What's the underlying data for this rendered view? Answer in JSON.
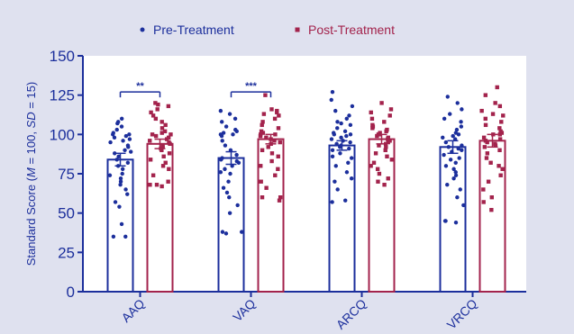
{
  "chart_data": {
    "type": "bar",
    "ylabel_parts": [
      "Standard Score (",
      "M",
      " = 100, ",
      "SD",
      " = 15)"
    ],
    "ylim": [
      0,
      150
    ],
    "yticks": [
      0,
      25,
      50,
      75,
      100,
      125,
      150
    ],
    "categories": [
      "AAQ",
      "VAQ",
      "ARCQ",
      "VRCQ"
    ],
    "series": [
      {
        "name": "Pre-Treatment",
        "color": "#1c2f9c",
        "marker": "circle",
        "values": [
          84,
          85,
          93,
          92
        ],
        "errors": [
          4,
          4,
          3,
          4
        ],
        "points": [
          [
            35,
            35,
            43,
            54,
            57,
            62,
            65,
            68,
            70,
            72,
            74,
            75,
            78,
            80,
            82,
            84,
            86,
            88,
            89,
            90,
            92,
            93,
            95,
            96,
            97,
            98,
            99,
            100,
            100,
            101,
            103,
            105,
            107,
            108,
            110
          ],
          [
            37,
            38,
            38,
            50,
            55,
            60,
            63,
            66,
            70,
            75,
            76,
            78,
            80,
            82,
            83,
            84,
            85,
            87,
            90,
            93,
            96,
            99,
            100,
            100,
            101,
            102,
            103,
            105,
            108,
            110,
            113,
            115
          ],
          [
            57,
            58,
            65,
            70,
            72,
            76,
            80,
            82,
            85,
            86,
            88,
            90,
            91,
            92,
            93,
            94,
            95,
            96,
            97,
            98,
            99,
            100,
            100,
            101,
            102,
            104,
            106,
            107,
            108,
            110,
            112,
            115,
            118,
            122,
            127
          ],
          [
            44,
            45,
            45,
            55,
            60,
            65,
            68,
            72,
            74,
            76,
            78,
            80,
            82,
            84,
            85,
            87,
            89,
            90,
            91,
            92,
            93,
            95,
            97,
            98,
            99,
            100,
            101,
            103,
            105,
            108,
            110,
            113,
            116,
            120,
            124
          ]
        ]
      },
      {
        "name": "Post-Treatment",
        "color": "#a3234c",
        "marker": "square",
        "values": [
          94,
          97,
          97,
          96
        ],
        "errors": [
          3,
          3,
          3,
          4
        ],
        "points": [
          [
            67,
            68,
            68,
            70,
            74,
            78,
            80,
            82,
            84,
            86,
            88,
            90,
            91,
            92,
            93,
            94,
            95,
            96,
            97,
            98,
            99,
            100,
            100,
            101,
            102,
            104,
            106,
            108,
            110,
            112,
            114,
            116,
            118,
            119,
            120
          ],
          [
            58,
            60,
            60,
            66,
            70,
            74,
            78,
            80,
            83,
            86,
            88,
            90,
            92,
            94,
            95,
            96,
            97,
            98,
            99,
            100,
            100,
            101,
            102,
            104,
            106,
            108,
            110,
            112,
            113,
            114,
            115,
            116,
            125
          ],
          [
            68,
            70,
            72,
            75,
            78,
            80,
            82,
            84,
            86,
            88,
            90,
            92,
            93,
            94,
            95,
            96,
            97,
            98,
            99,
            100,
            100,
            101,
            102,
            103,
            104,
            105,
            106,
            108,
            110,
            112,
            114,
            116,
            120
          ],
          [
            52,
            57,
            60,
            65,
            70,
            74,
            78,
            80,
            82,
            85,
            88,
            90,
            92,
            93,
            94,
            95,
            96,
            97,
            98,
            100,
            100,
            101,
            102,
            104,
            106,
            108,
            110,
            112,
            113,
            115,
            118,
            120,
            125,
            130
          ]
        ]
      }
    ],
    "significance": [
      {
        "category": "AAQ",
        "label": "**"
      },
      {
        "category": "VAQ",
        "label": "***"
      }
    ],
    "legend_placement": "top",
    "grid": false
  }
}
